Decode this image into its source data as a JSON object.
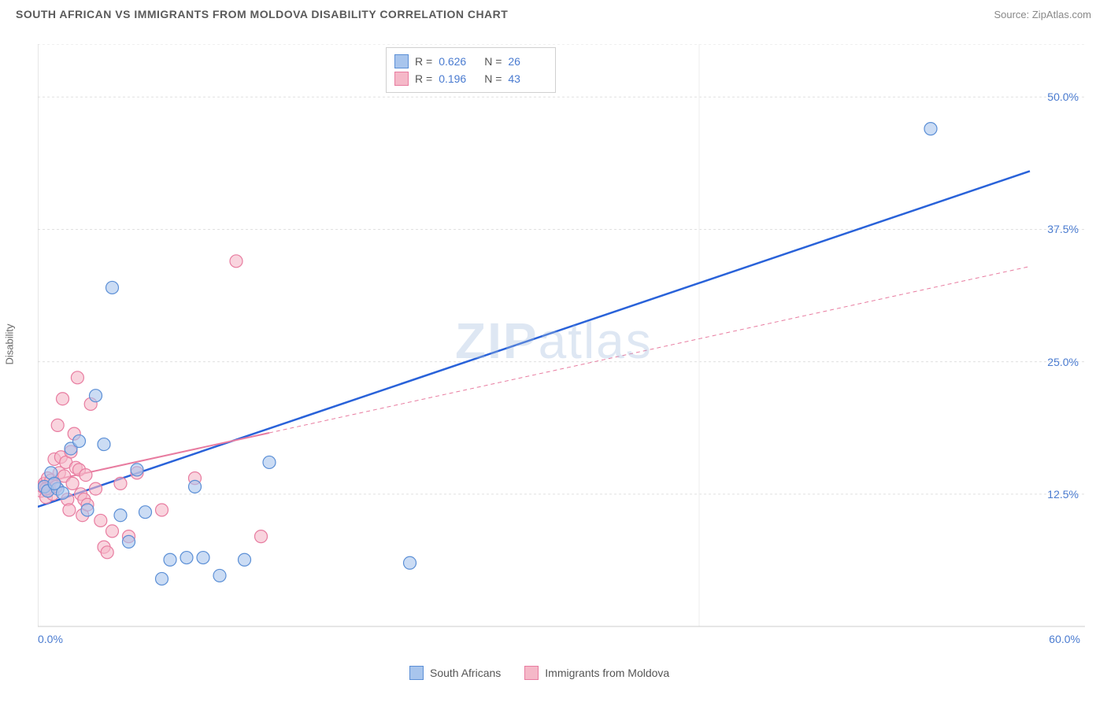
{
  "header": {
    "title": "SOUTH AFRICAN VS IMMIGRANTS FROM MOLDOVA DISABILITY CORRELATION CHART",
    "source": "Source: ZipAtlas.com"
  },
  "y_axis_label": "Disability",
  "watermark": "ZIPatlas",
  "chart": {
    "type": "scatter",
    "xlim": [
      0,
      60
    ],
    "ylim": [
      0,
      55
    ],
    "y_ticks": [
      12.5,
      25.0,
      37.5,
      50.0
    ],
    "y_tick_labels": [
      "12.5%",
      "25.0%",
      "37.5%",
      "50.0%"
    ],
    "x_tick_labels": {
      "start": "0.0%",
      "end": "60.0%"
    },
    "grid_color": "#e0e0e0",
    "background_color": "#ffffff",
    "marker_radius": 8,
    "series": [
      {
        "name": "South Africans",
        "fill_color": "#a8c5ed",
        "stroke_color": "#5b8fd6",
        "fill_opacity": 0.6,
        "R": "0.626",
        "N": "26",
        "trend": {
          "x1": 0,
          "y1": 11.3,
          "x2": 60,
          "y2": 43.0,
          "color": "#2962d9",
          "width": 2.5,
          "dash": "none"
        },
        "points": [
          [
            0.4,
            13.2
          ],
          [
            0.6,
            12.8
          ],
          [
            0.8,
            14.5
          ],
          [
            1.2,
            13.0
          ],
          [
            1.5,
            12.6
          ],
          [
            2.0,
            16.8
          ],
          [
            2.5,
            17.5
          ],
          [
            3.0,
            11.0
          ],
          [
            3.5,
            21.8
          ],
          [
            4.0,
            17.2
          ],
          [
            4.5,
            32.0
          ],
          [
            5.0,
            10.5
          ],
          [
            5.5,
            8.0
          ],
          [
            6.0,
            14.8
          ],
          [
            6.5,
            10.8
          ],
          [
            7.5,
            4.5
          ],
          [
            8.0,
            6.3
          ],
          [
            9.0,
            6.5
          ],
          [
            9.5,
            13.2
          ],
          [
            10.0,
            6.5
          ],
          [
            11.0,
            4.8
          ],
          [
            12.5,
            6.3
          ],
          [
            14.0,
            15.5
          ],
          [
            22.5,
            6.0
          ],
          [
            1.0,
            13.5
          ],
          [
            54.0,
            47.0
          ]
        ]
      },
      {
        "name": "Immigrants from Moldova",
        "fill_color": "#f5b8c8",
        "stroke_color": "#e87ca0",
        "fill_opacity": 0.6,
        "R": "0.196",
        "N": "43",
        "trend": {
          "x1": 0,
          "y1": 13.5,
          "x2": 60,
          "y2": 34.0,
          "color": "#e87ca0",
          "width": 1.5,
          "dash": "5,4",
          "solid_until_x": 14
        },
        "points": [
          [
            0.2,
            12.8
          ],
          [
            0.3,
            13.2
          ],
          [
            0.4,
            13.5
          ],
          [
            0.5,
            12.2
          ],
          [
            0.6,
            14.0
          ],
          [
            0.7,
            13.0
          ],
          [
            0.8,
            13.8
          ],
          [
            0.9,
            12.5
          ],
          [
            1.0,
            15.8
          ],
          [
            1.1,
            13.2
          ],
          [
            1.2,
            19.0
          ],
          [
            1.3,
            14.5
          ],
          [
            1.4,
            16.0
          ],
          [
            1.5,
            21.5
          ],
          [
            1.6,
            14.2
          ],
          [
            1.7,
            15.5
          ],
          [
            1.8,
            12.0
          ],
          [
            1.9,
            11.0
          ],
          [
            2.0,
            16.5
          ],
          [
            2.1,
            13.5
          ],
          [
            2.2,
            18.2
          ],
          [
            2.3,
            15.0
          ],
          [
            2.4,
            23.5
          ],
          [
            2.5,
            14.8
          ],
          [
            2.6,
            12.5
          ],
          [
            2.7,
            10.5
          ],
          [
            2.8,
            12.0
          ],
          [
            2.9,
            14.3
          ],
          [
            3.0,
            11.5
          ],
          [
            3.2,
            21.0
          ],
          [
            3.5,
            13.0
          ],
          [
            3.8,
            10.0
          ],
          [
            4.0,
            7.5
          ],
          [
            4.2,
            7.0
          ],
          [
            4.5,
            9.0
          ],
          [
            5.0,
            13.5
          ],
          [
            5.5,
            8.5
          ],
          [
            6.0,
            14.5
          ],
          [
            7.5,
            11.0
          ],
          [
            9.5,
            14.0
          ],
          [
            12.0,
            34.5
          ],
          [
            13.5,
            8.5
          ],
          [
            0.5,
            13.0
          ]
        ]
      }
    ]
  },
  "legend_top": {
    "rows": [
      {
        "swatch_fill": "#a8c5ed",
        "swatch_stroke": "#5b8fd6",
        "r_label": "R =",
        "r_val": "0.626",
        "n_label": "N =",
        "n_val": "26"
      },
      {
        "swatch_fill": "#f5b8c8",
        "swatch_stroke": "#e87ca0",
        "r_label": "R =",
        "r_val": "0.196",
        "n_label": "N =",
        "n_val": "43"
      }
    ]
  },
  "legend_bottom": {
    "items": [
      {
        "swatch_fill": "#a8c5ed",
        "swatch_stroke": "#5b8fd6",
        "label": "South Africans"
      },
      {
        "swatch_fill": "#f5b8c8",
        "swatch_stroke": "#e87ca0",
        "label": "Immigrants from Moldova"
      }
    ]
  }
}
